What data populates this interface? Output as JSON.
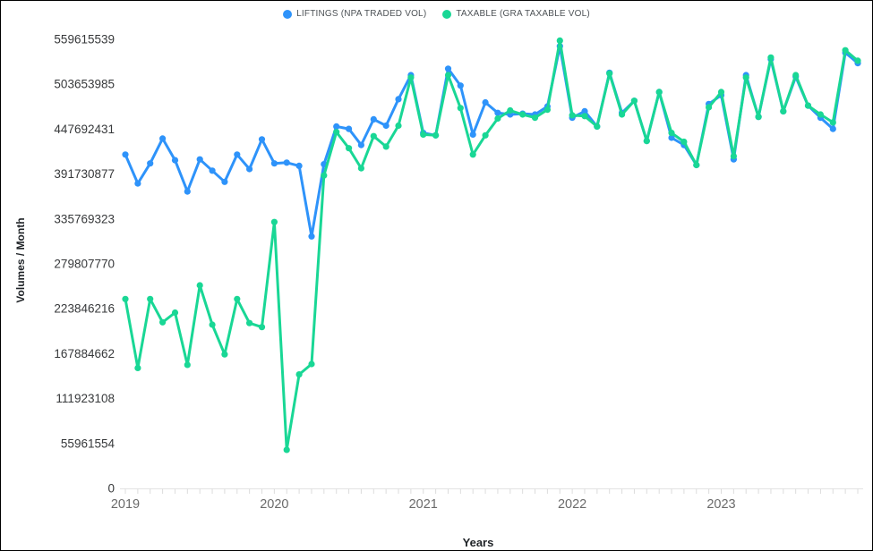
{
  "legend": {
    "items": [
      {
        "label": "LIFTINGS (NPA TRADED VOL)",
        "color": "#2E93FA"
      },
      {
        "label": "TAXABLE (GRA TAXABLE VOL)",
        "color": "#19D795"
      }
    ]
  },
  "axes": {
    "y_title": "Volumes / Month",
    "x_title": "Years",
    "y_ticks": [
      0,
      55961554,
      111923108,
      167884662,
      223846216,
      279807770,
      335769323,
      391730877,
      447692431,
      503653985,
      559615539
    ],
    "x_tick_years": [
      "2019",
      "2020",
      "2021",
      "2022",
      "2023"
    ]
  },
  "chart_data": {
    "type": "line",
    "title": "",
    "xlabel": "Years",
    "ylabel": "Volumes / Month",
    "ylim": [
      0,
      559615539
    ],
    "grid": false,
    "legend_position": "top",
    "x": [
      "2019-01",
      "2019-02",
      "2019-03",
      "2019-04",
      "2019-05",
      "2019-06",
      "2019-07",
      "2019-08",
      "2019-09",
      "2019-10",
      "2019-11",
      "2019-12",
      "2020-01",
      "2020-02",
      "2020-03",
      "2020-04",
      "2020-05",
      "2020-06",
      "2020-07",
      "2020-08",
      "2020-09",
      "2020-10",
      "2020-11",
      "2020-12",
      "2021-01",
      "2021-02",
      "2021-03",
      "2021-04",
      "2021-05",
      "2021-06",
      "2021-07",
      "2021-08",
      "2021-09",
      "2021-10",
      "2021-11",
      "2021-12",
      "2022-01",
      "2022-02",
      "2022-03",
      "2022-04",
      "2022-05",
      "2022-06",
      "2022-07",
      "2022-08",
      "2022-09",
      "2022-10",
      "2022-11",
      "2022-12",
      "2023-01",
      "2023-02",
      "2023-03",
      "2023-04",
      "2023-05",
      "2023-06",
      "2023-07",
      "2023-08",
      "2023-09",
      "2023-10",
      "2023-11",
      "2023-12"
    ],
    "series": [
      {
        "name": "LIFTINGS (NPA TRADED VOL)",
        "color": "#2E93FA",
        "values": [
          416000000,
          380000000,
          405000000,
          436000000,
          409000000,
          370000000,
          410000000,
          396000000,
          382000000,
          416000000,
          398000000,
          435000000,
          405000000,
          406000000,
          402000000,
          314000000,
          404000000,
          451000000,
          448000000,
          428000000,
          460000000,
          452000000,
          485000000,
          515000000,
          443000000,
          440000000,
          523000000,
          502000000,
          441000000,
          481000000,
          468000000,
          466000000,
          467000000,
          466000000,
          476000000,
          551000000,
          462000000,
          470000000,
          451000000,
          518000000,
          468000000,
          483000000,
          433000000,
          494000000,
          437000000,
          428000000,
          403000000,
          479000000,
          490000000,
          410000000,
          515000000,
          463000000,
          535000000,
          470000000,
          513000000,
          477000000,
          462000000,
          448000000,
          543000000,
          530000000
        ]
      },
      {
        "name": "TAXABLE (GRA TAXABLE VOL)",
        "color": "#19D795",
        "values": [
          236000000,
          150000000,
          236000000,
          207000000,
          219000000,
          154000000,
          253000000,
          204000000,
          167000000,
          236000000,
          206000000,
          201000000,
          332000000,
          48000000,
          142000000,
          155000000,
          390000000,
          444000000,
          424000000,
          399000000,
          439000000,
          426000000,
          452000000,
          512000000,
          441000000,
          440000000,
          515000000,
          474000000,
          416000000,
          440000000,
          461000000,
          471000000,
          466000000,
          462000000,
          472000000,
          558000000,
          465000000,
          464000000,
          451000000,
          517000000,
          466000000,
          483000000,
          433000000,
          494000000,
          443000000,
          432000000,
          403000000,
          475000000,
          494000000,
          414000000,
          512000000,
          463000000,
          537000000,
          470000000,
          515000000,
          477000000,
          466000000,
          456000000,
          546000000,
          533000000
        ]
      }
    ]
  }
}
